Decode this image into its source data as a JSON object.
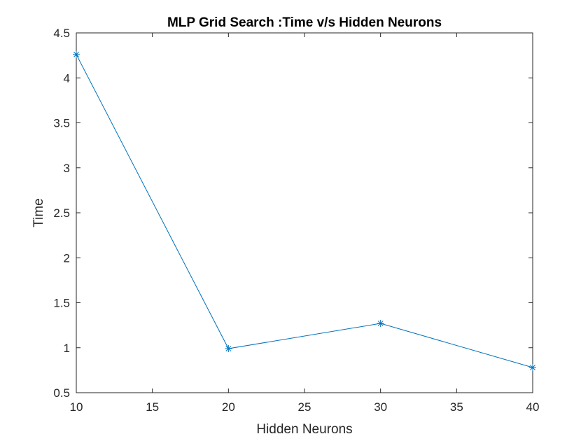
{
  "chart_data": {
    "type": "line",
    "title": "MLP Grid Search :Time v/s Hidden Neurons",
    "xlabel": "Hidden Neurons",
    "ylabel": "Time",
    "xlim": [
      10,
      40
    ],
    "ylim": [
      0.5,
      4.5
    ],
    "xticks": [
      "10",
      "15",
      "20",
      "25",
      "30",
      "35",
      "40"
    ],
    "yticks": [
      "0.5",
      "1",
      "1.5",
      "2",
      "2.5",
      "3",
      "3.5",
      "4",
      "4.5"
    ],
    "x": [
      10,
      20,
      30,
      40
    ],
    "series": [
      {
        "values": [
          4.26,
          0.99,
          1.27,
          0.78
        ],
        "color": "#0072bd",
        "marker": "asterisk"
      }
    ],
    "grid": false,
    "legend": false
  }
}
